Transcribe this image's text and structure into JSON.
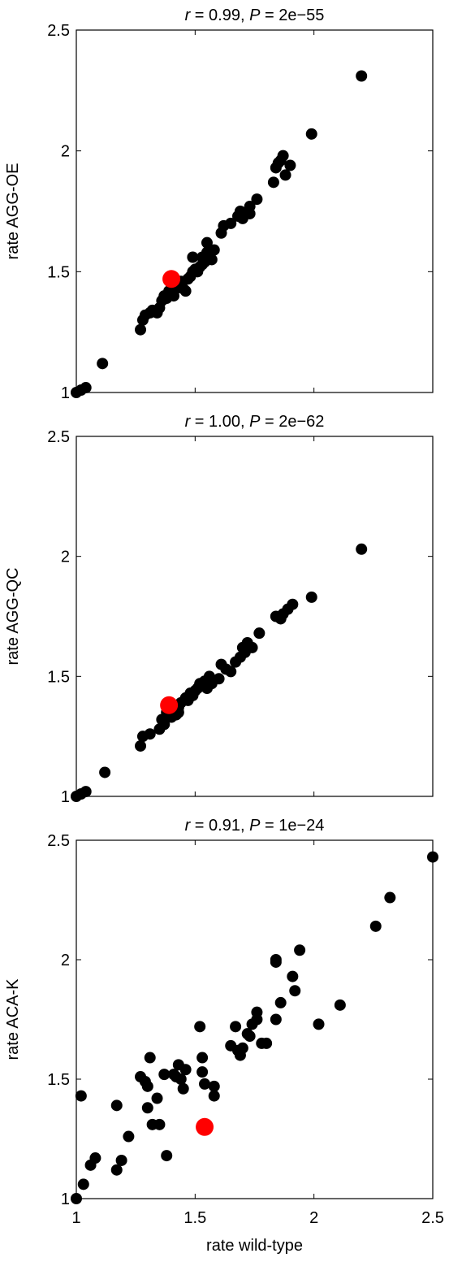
{
  "chart_data": [
    {
      "type": "scatter",
      "title": {
        "r_symbol": "r",
        "r_text": " = 0.99, ",
        "p_symbol": "P",
        "p_text": " = 2e−55"
      },
      "xlabel": "",
      "ylabel": "rate AGG-OE",
      "xlim": [
        1,
        2.5
      ],
      "ylim": [
        1,
        2.5
      ],
      "xticks": [
        "1",
        "1.5",
        "2",
        "2.5"
      ],
      "yticks": [
        "1",
        "1.5",
        "2",
        "2.5"
      ],
      "show_xtick_labels": false,
      "series": [
        {
          "color": "#000000",
          "points": [
            [
              1.0,
              1.0
            ],
            [
              1.02,
              1.01
            ],
            [
              1.04,
              1.02
            ],
            [
              1.11,
              1.12
            ],
            [
              1.27,
              1.26
            ],
            [
              1.28,
              1.3
            ],
            [
              1.29,
              1.32
            ],
            [
              1.31,
              1.33
            ],
            [
              1.32,
              1.34
            ],
            [
              1.34,
              1.33
            ],
            [
              1.35,
              1.35
            ],
            [
              1.36,
              1.38
            ],
            [
              1.37,
              1.4
            ],
            [
              1.38,
              1.39
            ],
            [
              1.39,
              1.42
            ],
            [
              1.41,
              1.4
            ],
            [
              1.42,
              1.43
            ],
            [
              1.43,
              1.44
            ],
            [
              1.44,
              1.46
            ],
            [
              1.45,
              1.43
            ],
            [
              1.46,
              1.42
            ],
            [
              1.47,
              1.47
            ],
            [
              1.48,
              1.48
            ],
            [
              1.49,
              1.5
            ],
            [
              1.5,
              1.51
            ],
            [
              1.51,
              1.5
            ],
            [
              1.52,
              1.52
            ],
            [
              1.53,
              1.53
            ],
            [
              1.54,
              1.54
            ],
            [
              1.55,
              1.58
            ],
            [
              1.56,
              1.56
            ],
            [
              1.57,
              1.55
            ],
            [
              1.58,
              1.59
            ],
            [
              1.55,
              1.62
            ],
            [
              1.61,
              1.66
            ],
            [
              1.62,
              1.69
            ],
            [
              1.65,
              1.7
            ],
            [
              1.68,
              1.73
            ],
            [
              1.69,
              1.75
            ],
            [
              1.7,
              1.72
            ],
            [
              1.73,
              1.74
            ],
            [
              1.73,
              1.77
            ],
            [
              1.76,
              1.8
            ],
            [
              1.83,
              1.87
            ],
            [
              1.84,
              1.93
            ],
            [
              1.85,
              1.95
            ],
            [
              1.86,
              1.96
            ],
            [
              1.87,
              1.98
            ],
            [
              1.88,
              1.9
            ],
            [
              1.9,
              1.94
            ],
            [
              1.99,
              2.07
            ],
            [
              2.2,
              2.31
            ],
            [
              1.53,
              1.56
            ],
            [
              1.49,
              1.56
            ]
          ]
        },
        {
          "color": "#ff0000",
          "points": [
            [
              1.4,
              1.47
            ]
          ]
        }
      ]
    },
    {
      "type": "scatter",
      "title": {
        "r_symbol": "r",
        "r_text": " = 1.00, ",
        "p_symbol": "P",
        "p_text": " = 2e−62"
      },
      "xlabel": "",
      "ylabel": "rate AGG-QC",
      "xlim": [
        1,
        2.5
      ],
      "ylim": [
        1,
        2.5
      ],
      "xticks": [
        "1",
        "1.5",
        "2",
        "2.5"
      ],
      "yticks": [
        "1",
        "1.5",
        "2",
        "2.5"
      ],
      "show_xtick_labels": false,
      "series": [
        {
          "color": "#000000",
          "points": [
            [
              1.0,
              1.0
            ],
            [
              1.02,
              1.01
            ],
            [
              1.04,
              1.02
            ],
            [
              1.12,
              1.1
            ],
            [
              1.27,
              1.21
            ],
            [
              1.28,
              1.25
            ],
            [
              1.31,
              1.26
            ],
            [
              1.35,
              1.28
            ],
            [
              1.36,
              1.32
            ],
            [
              1.37,
              1.3
            ],
            [
              1.38,
              1.35
            ],
            [
              1.4,
              1.33
            ],
            [
              1.42,
              1.34
            ],
            [
              1.43,
              1.35
            ],
            [
              1.43,
              1.37
            ],
            [
              1.44,
              1.39
            ],
            [
              1.46,
              1.41
            ],
            [
              1.47,
              1.4
            ],
            [
              1.48,
              1.43
            ],
            [
              1.49,
              1.42
            ],
            [
              1.5,
              1.44
            ],
            [
              1.51,
              1.45
            ],
            [
              1.52,
              1.47
            ],
            [
              1.53,
              1.46
            ],
            [
              1.54,
              1.48
            ],
            [
              1.55,
              1.45
            ],
            [
              1.56,
              1.5
            ],
            [
              1.57,
              1.47
            ],
            [
              1.6,
              1.49
            ],
            [
              1.61,
              1.55
            ],
            [
              1.63,
              1.53
            ],
            [
              1.65,
              1.52
            ],
            [
              1.67,
              1.56
            ],
            [
              1.69,
              1.58
            ],
            [
              1.7,
              1.62
            ],
            [
              1.71,
              1.6
            ],
            [
              1.72,
              1.64
            ],
            [
              1.74,
              1.62
            ],
            [
              1.77,
              1.68
            ],
            [
              1.84,
              1.75
            ],
            [
              1.86,
              1.74
            ],
            [
              1.87,
              1.76
            ],
            [
              1.89,
              1.78
            ],
            [
              1.91,
              1.8
            ],
            [
              1.99,
              1.83
            ],
            [
              2.2,
              2.03
            ]
          ]
        },
        {
          "color": "#ff0000",
          "points": [
            [
              1.39,
              1.38
            ]
          ]
        }
      ]
    },
    {
      "type": "scatter",
      "title": {
        "r_symbol": "r",
        "r_text": " = 0.91, ",
        "p_symbol": "P",
        "p_text": " = 1e−24"
      },
      "xlabel": "rate wild-type",
      "ylabel": "rate ACA-K",
      "xlim": [
        1,
        2.5
      ],
      "ylim": [
        1,
        2.5
      ],
      "xticks": [
        "1",
        "1.5",
        "2",
        "2.5"
      ],
      "yticks": [
        "1",
        "1.5",
        "2",
        "2.5"
      ],
      "show_xtick_labels": true,
      "series": [
        {
          "color": "#000000",
          "points": [
            [
              1.0,
              1.0
            ],
            [
              1.02,
              1.43
            ],
            [
              1.03,
              1.06
            ],
            [
              1.06,
              1.14
            ],
            [
              1.08,
              1.17
            ],
            [
              1.17,
              1.12
            ],
            [
              1.17,
              1.39
            ],
            [
              1.19,
              1.16
            ],
            [
              1.22,
              1.26
            ],
            [
              1.27,
              1.51
            ],
            [
              1.29,
              1.49
            ],
            [
              1.3,
              1.38
            ],
            [
              1.3,
              1.47
            ],
            [
              1.31,
              1.59
            ],
            [
              1.32,
              1.31
            ],
            [
              1.34,
              1.42
            ],
            [
              1.35,
              1.31
            ],
            [
              1.37,
              1.52
            ],
            [
              1.38,
              1.18
            ],
            [
              1.41,
              1.52
            ],
            [
              1.42,
              1.51
            ],
            [
              1.43,
              1.56
            ],
            [
              1.44,
              1.5
            ],
            [
              1.45,
              1.46
            ],
            [
              1.46,
              1.54
            ],
            [
              1.52,
              1.72
            ],
            [
              1.53,
              1.59
            ],
            [
              1.53,
              1.53
            ],
            [
              1.54,
              1.48
            ],
            [
              1.58,
              1.43
            ],
            [
              1.58,
              1.47
            ],
            [
              1.65,
              1.64
            ],
            [
              1.67,
              1.72
            ],
            [
              1.68,
              1.62
            ],
            [
              1.69,
              1.6
            ],
            [
              1.7,
              1.63
            ],
            [
              1.72,
              1.69
            ],
            [
              1.73,
              1.68
            ],
            [
              1.74,
              1.73
            ],
            [
              1.76,
              1.75
            ],
            [
              1.76,
              1.78
            ],
            [
              1.78,
              1.65
            ],
            [
              1.8,
              1.65
            ],
            [
              1.84,
              1.75
            ],
            [
              1.84,
              2.0
            ],
            [
              1.84,
              1.99
            ],
            [
              1.86,
              1.82
            ],
            [
              1.91,
              1.93
            ],
            [
              1.92,
              1.87
            ],
            [
              1.94,
              2.04
            ],
            [
              2.02,
              1.73
            ],
            [
              2.11,
              1.81
            ],
            [
              2.26,
              2.14
            ],
            [
              2.32,
              2.26
            ],
            [
              2.5,
              2.43
            ]
          ]
        },
        {
          "color": "#ff0000",
          "points": [
            [
              1.54,
              1.3
            ]
          ]
        }
      ]
    }
  ]
}
